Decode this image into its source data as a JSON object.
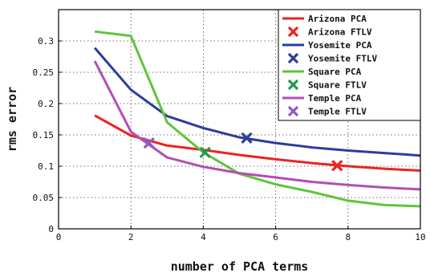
{
  "chart_data": {
    "type": "line",
    "xlabel": "number of PCA terms",
    "ylabel": "rms error",
    "xlim": [
      0,
      10
    ],
    "ylim": [
      0,
      0.35
    ],
    "xticks": [
      "0",
      "2",
      "4",
      "6",
      "8",
      "10"
    ],
    "yticks": [
      "0",
      "0.05",
      "0.1",
      "0.15",
      "0.2",
      "0.25",
      "0.3"
    ],
    "grid": true,
    "legend_position": "top-right",
    "series": [
      {
        "name": "Arizona PCA",
        "kind": "line",
        "color": "#ee2222",
        "x": [
          1,
          2,
          3,
          4,
          5,
          6,
          7,
          8,
          9,
          10
        ],
        "y": [
          0.181,
          0.149,
          0.133,
          0.126,
          0.118,
          0.111,
          0.105,
          0.1,
          0.096,
          0.093
        ]
      },
      {
        "name": "Arizona FTLV",
        "kind": "marker",
        "color": "#ee2222",
        "x": [
          7.7
        ],
        "y": [
          0.101
        ]
      },
      {
        "name": "Yosemite PCA",
        "kind": "line",
        "color": "#2b3e9a",
        "x": [
          1,
          2,
          3,
          4,
          5,
          6,
          7,
          8,
          9,
          10
        ],
        "y": [
          0.289,
          0.222,
          0.18,
          0.161,
          0.146,
          0.137,
          0.13,
          0.125,
          0.121,
          0.117
        ]
      },
      {
        "name": "Yosemite FTLV",
        "kind": "marker",
        "color": "#2b3e9a",
        "x": [
          5.2
        ],
        "y": [
          0.145
        ]
      },
      {
        "name": "Square PCA",
        "kind": "line",
        "color": "#5fc53a",
        "x": [
          1,
          2,
          3,
          4,
          5,
          6,
          7,
          8,
          9,
          10
        ],
        "y": [
          0.315,
          0.308,
          0.17,
          0.122,
          0.088,
          0.071,
          0.059,
          0.045,
          0.038,
          0.036
        ]
      },
      {
        "name": "Square FTLV",
        "kind": "marker",
        "color": "#1f9a4c",
        "x": [
          4.05
        ],
        "y": [
          0.122
        ]
      },
      {
        "name": "Temple PCA",
        "kind": "line",
        "color": "#b14fb3",
        "x": [
          1,
          2,
          3,
          4,
          5,
          6,
          7,
          8,
          9,
          10
        ],
        "y": [
          0.268,
          0.155,
          0.114,
          0.099,
          0.089,
          0.082,
          0.075,
          0.07,
          0.066,
          0.063
        ]
      },
      {
        "name": "Temple FTLV",
        "kind": "marker",
        "color": "#8e5bbf",
        "x": [
          2.5
        ],
        "y": [
          0.137
        ]
      }
    ]
  }
}
